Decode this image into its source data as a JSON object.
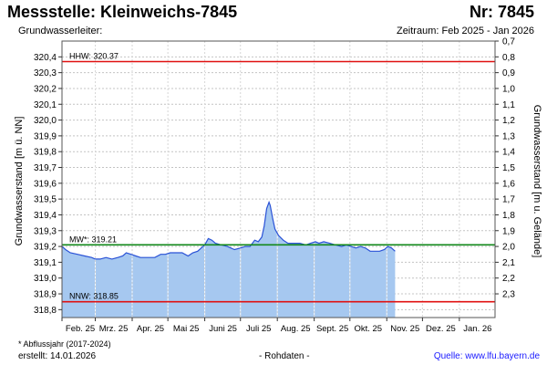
{
  "header": {
    "title": "Messstelle: Kleinweichs-7845",
    "nr": "Nr: 7845",
    "subtitle": "Grundwasserleiter:",
    "period": "Zeitraum: Feb 2025 - Jan 2026"
  },
  "footer": {
    "footnote": "* Abflussjahr (2017-2024)",
    "created": "erstellt:  14.01.2026",
    "rohdaten": "- Rohdaten -",
    "source": "Quelle: www.lfu.bayern.de"
  },
  "colors": {
    "fill": "#a6c8f0",
    "line": "#2a52d6",
    "hhw_nnw": "#e01010",
    "mw": "#12881a",
    "grid": "#c4c4c4"
  },
  "chart_data": {
    "type": "area",
    "ylabel": "Grundwasserstand [m ü. NN]",
    "ylabel_right": "Grundwasserstand [m u. Gelände]",
    "ylim": [
      318.75,
      320.5
    ],
    "yticks": [
      "320,4",
      "320,3",
      "320,2",
      "320,1",
      "320,0",
      "319,9",
      "319,8",
      "319,7",
      "319,6",
      "319,5",
      "319,4",
      "319,3",
      "319,2",
      "319,1",
      "319,0",
      "318,9",
      "318,8"
    ],
    "ytick_values": [
      320.4,
      320.3,
      320.2,
      320.1,
      320.0,
      319.9,
      319.8,
      319.7,
      319.6,
      319.5,
      319.4,
      319.3,
      319.2,
      319.1,
      319.0,
      318.9,
      318.8
    ],
    "ylim_right": [
      2.45,
      0.7
    ],
    "yticks_right": [
      "0,7",
      "0,8",
      "0,9",
      "1,0",
      "1,1",
      "1,2",
      "1,3",
      "1,4",
      "1,5",
      "1,6",
      "1,7",
      "1,8",
      "1,9",
      "2,0",
      "2,1",
      "2,2",
      "2,3"
    ],
    "ytick_values_right": [
      0.7,
      0.8,
      0.9,
      1.0,
      1.1,
      1.2,
      1.3,
      1.4,
      1.5,
      1.6,
      1.7,
      1.8,
      1.9,
      2.0,
      2.1,
      2.2,
      2.3
    ],
    "xlim": [
      "2025-02-01",
      "2026-01-31"
    ],
    "xticks": [
      "Feb. 25",
      "Mrz. 25",
      "Apr. 25",
      "Mai 25",
      "Juni 25",
      "Juli 25",
      "Aug. 25",
      "Sept. 25",
      "Okt. 25",
      "Nov. 25",
      "Dez. 25",
      "Jan. 26"
    ],
    "xtick_dates": [
      "2025-02-01",
      "2025-03-01",
      "2025-04-01",
      "2025-05-01",
      "2025-06-01",
      "2025-07-01",
      "2025-08-01",
      "2025-09-01",
      "2025-10-01",
      "2025-11-01",
      "2025-12-01",
      "2026-01-01"
    ],
    "grid": true,
    "reference_lines": [
      {
        "label": "HHW: 320.37",
        "value": 320.37,
        "color": "#e01010"
      },
      {
        "label": "MW*: 319.21",
        "value": 319.21,
        "color": "#12881a"
      },
      {
        "label": "NNW: 318.85",
        "value": 318.85,
        "color": "#e01010"
      }
    ],
    "series": [
      {
        "points": [
          [
            "2025-02-01",
            319.2
          ],
          [
            "2025-02-04",
            319.18
          ],
          [
            "2025-02-08",
            319.16
          ],
          [
            "2025-02-14",
            319.15
          ],
          [
            "2025-02-20",
            319.14
          ],
          [
            "2025-02-26",
            319.13
          ],
          [
            "2025-03-01",
            319.12
          ],
          [
            "2025-03-05",
            319.12
          ],
          [
            "2025-03-10",
            319.13
          ],
          [
            "2025-03-15",
            319.12
          ],
          [
            "2025-03-20",
            319.13
          ],
          [
            "2025-03-24",
            319.14
          ],
          [
            "2025-03-27",
            319.16
          ],
          [
            "2025-03-31",
            319.15
          ],
          [
            "2025-04-04",
            319.14
          ],
          [
            "2025-04-08",
            319.13
          ],
          [
            "2025-04-12",
            319.13
          ],
          [
            "2025-04-16",
            319.13
          ],
          [
            "2025-04-20",
            319.13
          ],
          [
            "2025-04-25",
            319.15
          ],
          [
            "2025-04-29",
            319.15
          ],
          [
            "2025-05-03",
            319.16
          ],
          [
            "2025-05-08",
            319.16
          ],
          [
            "2025-05-13",
            319.16
          ],
          [
            "2025-05-18",
            319.14
          ],
          [
            "2025-05-22",
            319.16
          ],
          [
            "2025-05-26",
            319.17
          ],
          [
            "2025-05-29",
            319.19
          ],
          [
            "2025-06-01",
            319.21
          ],
          [
            "2025-06-04",
            319.25
          ],
          [
            "2025-06-07",
            319.24
          ],
          [
            "2025-06-10",
            319.22
          ],
          [
            "2025-06-15",
            319.21
          ],
          [
            "2025-06-20",
            319.2
          ],
          [
            "2025-06-26",
            319.18
          ],
          [
            "2025-07-01",
            319.19
          ],
          [
            "2025-07-05",
            319.2
          ],
          [
            "2025-07-09",
            319.2
          ],
          [
            "2025-07-13",
            319.24
          ],
          [
            "2025-07-16",
            319.23
          ],
          [
            "2025-07-19",
            319.26
          ],
          [
            "2025-07-21",
            319.33
          ],
          [
            "2025-07-23",
            319.44
          ],
          [
            "2025-07-25",
            319.48
          ],
          [
            "2025-07-26",
            319.46
          ],
          [
            "2025-07-28",
            319.38
          ],
          [
            "2025-07-30",
            319.31
          ],
          [
            "2025-08-02",
            319.27
          ],
          [
            "2025-08-06",
            319.24
          ],
          [
            "2025-08-10",
            319.22
          ],
          [
            "2025-08-15",
            319.22
          ],
          [
            "2025-08-20",
            319.22
          ],
          [
            "2025-08-25",
            319.21
          ],
          [
            "2025-08-29",
            319.22
          ],
          [
            "2025-09-02",
            319.23
          ],
          [
            "2025-09-05",
            319.22
          ],
          [
            "2025-09-09",
            319.23
          ],
          [
            "2025-09-14",
            319.22
          ],
          [
            "2025-09-19",
            319.21
          ],
          [
            "2025-09-24",
            319.2
          ],
          [
            "2025-09-28",
            319.21
          ],
          [
            "2025-10-02",
            319.2
          ],
          [
            "2025-10-06",
            319.19
          ],
          [
            "2025-10-10",
            319.2
          ],
          [
            "2025-10-14",
            319.19
          ],
          [
            "2025-10-18",
            319.17
          ],
          [
            "2025-10-22",
            319.17
          ],
          [
            "2025-10-26",
            319.17
          ],
          [
            "2025-10-30",
            319.18
          ],
          [
            "2025-11-02",
            319.2
          ],
          [
            "2025-11-05",
            319.19
          ],
          [
            "2025-11-08",
            319.17
          ]
        ]
      }
    ]
  }
}
